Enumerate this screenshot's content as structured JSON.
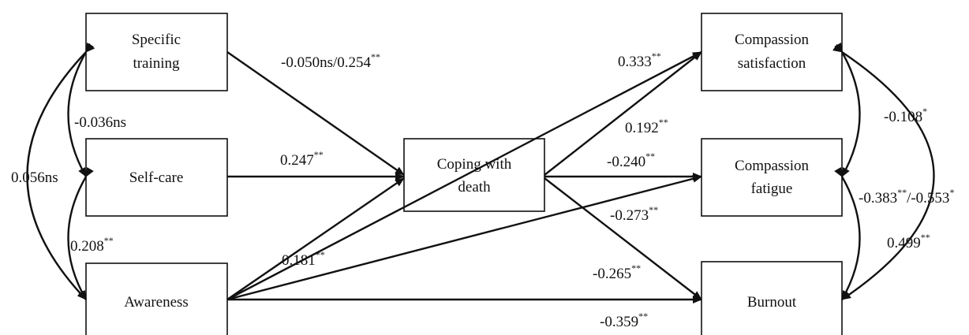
{
  "nodes": {
    "specific_training": [
      "Specific",
      "training"
    ],
    "self_care": [
      "Self-care"
    ],
    "awareness": [
      "Awareness"
    ],
    "coping": [
      "Coping with",
      "death"
    ],
    "compassion_satisfaction": [
      "Compassion",
      "satisfaction"
    ],
    "compassion_fatigue": [
      "Compassion",
      "fatigue"
    ],
    "burnout": [
      "Burnout"
    ]
  },
  "coefficients": {
    "specific_to_coping": {
      "value": "-0.050ns/0.254",
      "sig": "**"
    },
    "selfcare_to_coping": {
      "value": "0.247",
      "sig": "**"
    },
    "awareness_to_coping": {
      "value": "0.181",
      "sig": "**"
    },
    "coping_to_satisfaction": {
      "value": "0.333",
      "sig": "**"
    },
    "awareness_to_satisfaction": {
      "value": "0.192",
      "sig": "**"
    },
    "coping_to_fatigue": {
      "value": "-0.240",
      "sig": "**"
    },
    "awareness_to_fatigue": {
      "value": "-0.273",
      "sig": "**"
    },
    "coping_to_burnout": {
      "value": "-0.265",
      "sig": "**"
    },
    "awareness_to_burnout": {
      "value": "-0.359",
      "sig": "**"
    },
    "specific_selfcare": {
      "value": "-0.036ns",
      "sig": ""
    },
    "specific_awareness": {
      "value": "0.056ns",
      "sig": ""
    },
    "selfcare_awareness": {
      "value": "0.208",
      "sig": "**"
    },
    "satisfaction_fatigue": {
      "value": "-0.108",
      "sig": "*"
    },
    "satisfaction_burnout": {
      "value": "-0.383",
      "sig": "**",
      "value2": "/-0.553",
      "sig2": "*"
    },
    "fatigue_burnout": {
      "value": "0.499",
      "sig": "**"
    }
  }
}
